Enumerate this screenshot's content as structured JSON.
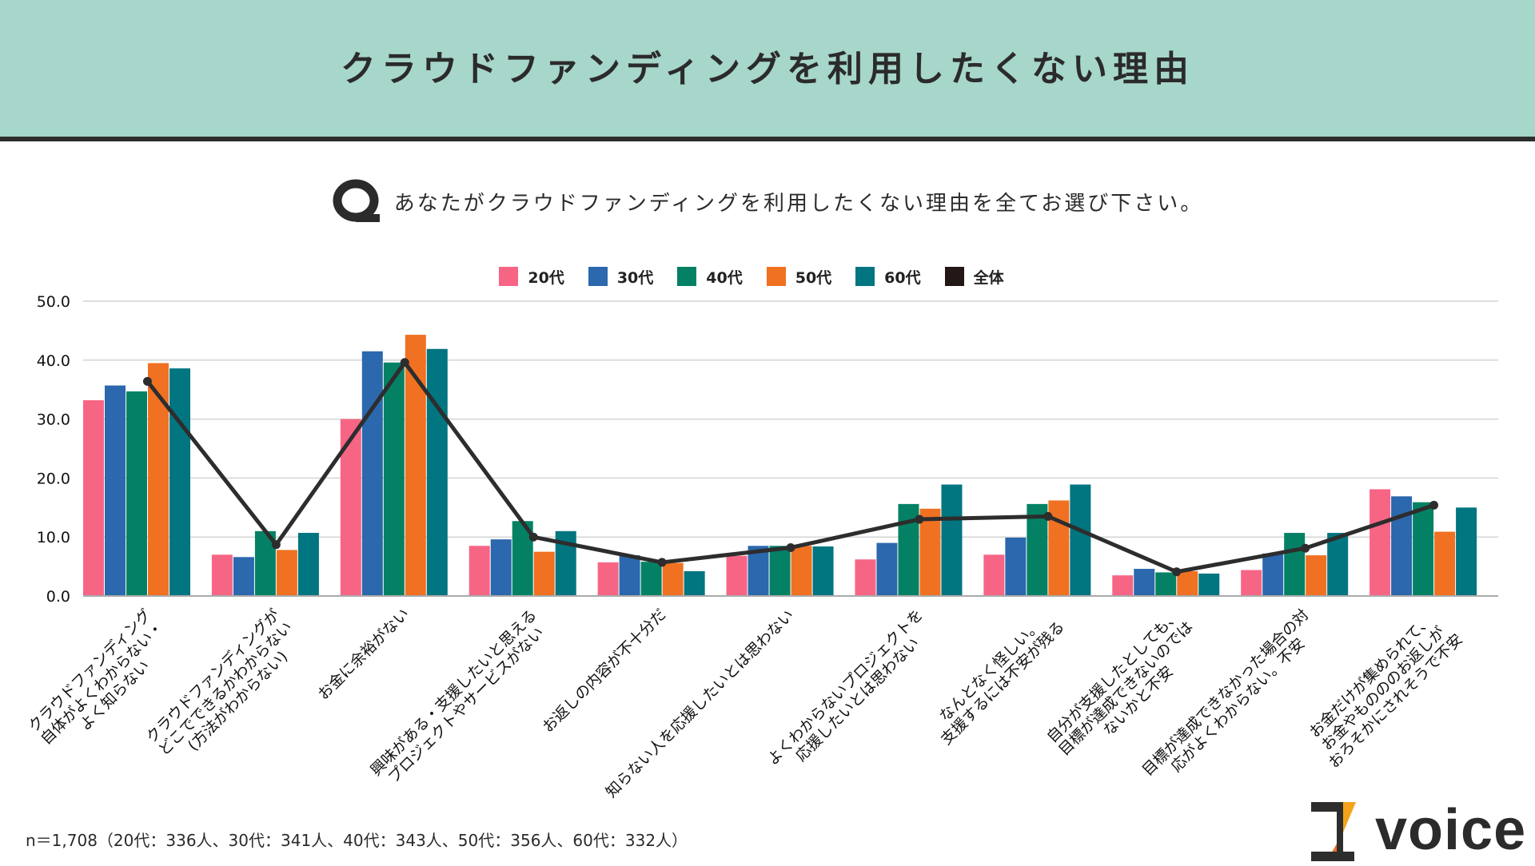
{
  "header": {
    "title": "クラウドファンディングを利用したくない理由"
  },
  "question": {
    "icon": "q-icon",
    "text": "あなたがクラウドファンディングを利用したくない理由を全てお選び下さい。"
  },
  "legend": [
    {
      "label": "20代",
      "color": "#f76585"
    },
    {
      "label": "30代",
      "color": "#2b68ad"
    },
    {
      "label": "40代",
      "color": "#048164"
    },
    {
      "label": "50代",
      "color": "#f07122"
    },
    {
      "label": "60代",
      "color": "#017580"
    },
    {
      "label": "全体",
      "color": "#231815"
    }
  ],
  "footnote": "n＝1,708（20代：336人、30代：341人、40代：343人、50代：356人、60代：332人）",
  "logo": {
    "text": "voice",
    "mark": "z-logo-icon"
  },
  "chart_data": {
    "type": "bar",
    "title": "クラウドファンディングを利用したくない理由",
    "xlabel": "",
    "ylabel": "",
    "ylim": [
      0,
      50
    ],
    "yticks": [
      "0.0",
      "10.0",
      "20.0",
      "30.0",
      "40.0",
      "50.0"
    ],
    "grid": true,
    "legend_position": "top",
    "categories": [
      [
        "クラウドファンディング",
        "自体がよくわからない・",
        "よく知らない"
      ],
      [
        "クラウドファンディングが",
        "どこでできるかわからない",
        "(方法がわからない)"
      ],
      [
        "お金に余裕がない"
      ],
      [
        "興味がある・支援したいと思える",
        "プロジェクトやサービスがない"
      ],
      [
        "お返しの内容が不十分だ"
      ],
      [
        "知らない人を応援したいとは思わない"
      ],
      [
        "よくわからないプロジェクトを",
        "応援したいとは思わない"
      ],
      [
        "なんとなく怪しい。",
        "支援するには不安が残る"
      ],
      [
        "自分が支援したとしても、",
        "目標が達成できないのでは",
        "ないかと不安"
      ],
      [
        "目標が達成できなかった場合の対",
        "応がよくわからない。不安"
      ],
      [
        "お金だけが集められて、",
        "お金やものののお返しが",
        "おろそかにされそうで不安"
      ]
    ],
    "series": [
      {
        "name": "20代",
        "type": "bar",
        "color": "#f76585",
        "values": [
          33.2,
          7.0,
          30.0,
          8.5,
          5.7,
          6.8,
          6.2,
          7.0,
          3.5,
          4.4,
          18.1
        ]
      },
      {
        "name": "30代",
        "type": "bar",
        "color": "#2b68ad",
        "values": [
          35.7,
          6.6,
          41.5,
          9.6,
          6.9,
          8.5,
          9.0,
          9.9,
          4.6,
          7.2,
          16.9
        ]
      },
      {
        "name": "40代",
        "type": "bar",
        "color": "#048164",
        "values": [
          34.7,
          11.0,
          39.6,
          12.7,
          5.8,
          8.5,
          15.6,
          15.6,
          4.0,
          10.7,
          15.9
        ]
      },
      {
        "name": "50代",
        "type": "bar",
        "color": "#f07122",
        "values": [
          39.5,
          7.8,
          44.3,
          7.5,
          5.6,
          8.5,
          14.8,
          16.2,
          4.2,
          6.9,
          10.9
        ]
      },
      {
        "name": "60代",
        "type": "bar",
        "color": "#017580",
        "values": [
          38.6,
          10.7,
          41.9,
          11.0,
          4.2,
          8.4,
          18.9,
          18.9,
          3.8,
          10.7,
          15.0
        ]
      },
      {
        "name": "全体",
        "type": "line",
        "color": "#2d2d2d",
        "values": [
          36.4,
          8.7,
          39.6,
          10.0,
          5.7,
          8.2,
          13.0,
          13.5,
          4.1,
          8.1,
          15.4
        ]
      }
    ]
  }
}
